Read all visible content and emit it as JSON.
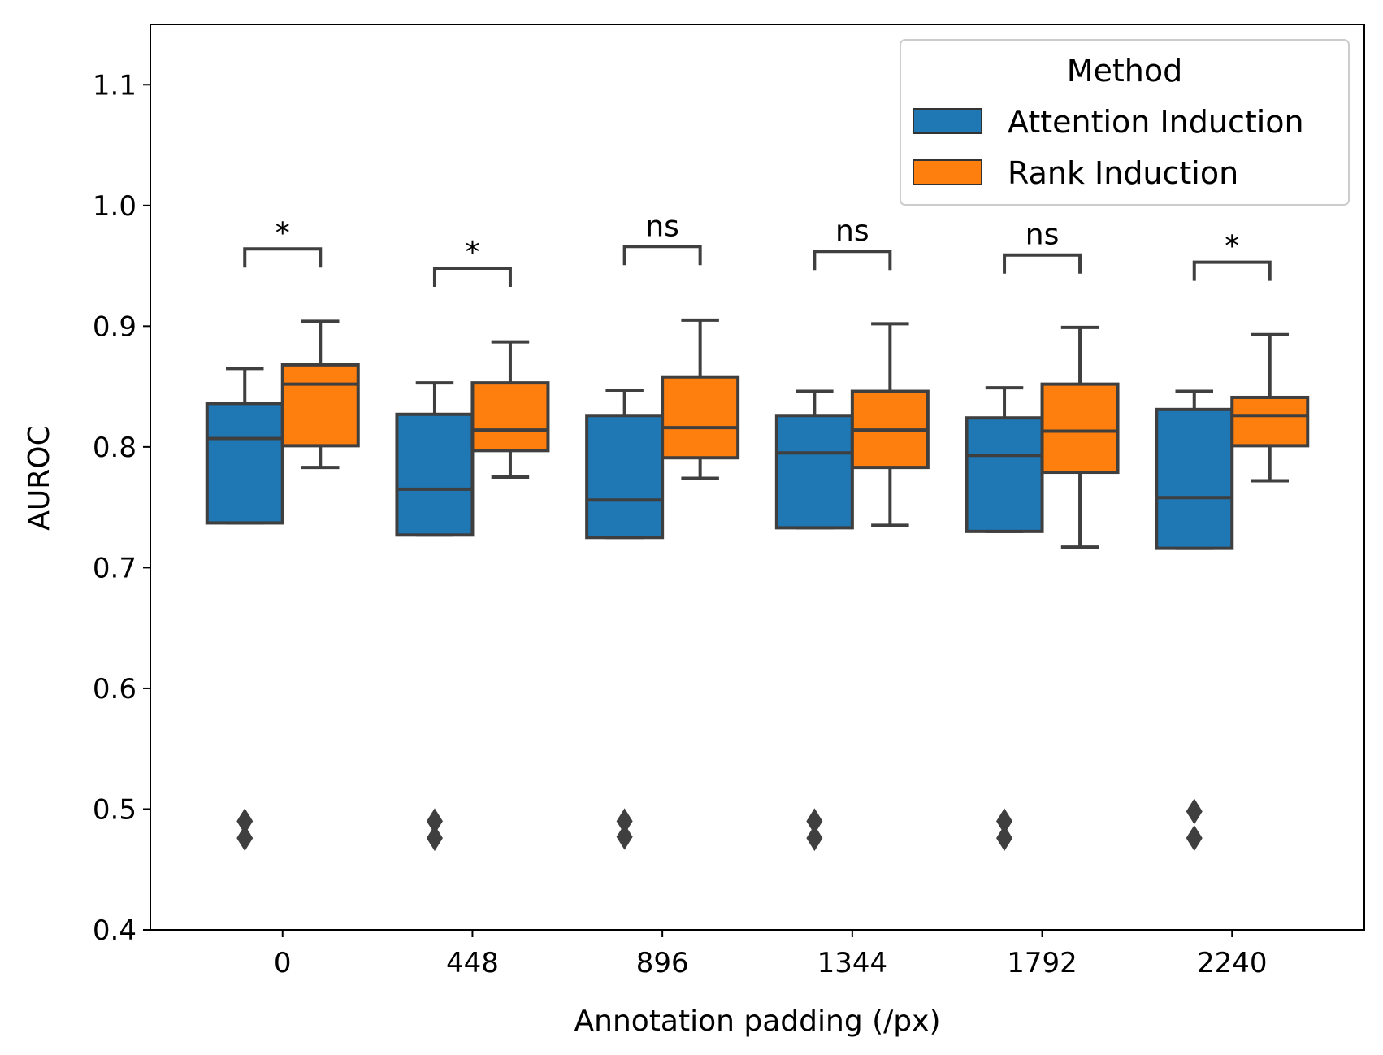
{
  "chart_data": {
    "type": "box",
    "xlabel": "Annotation padding (/px)",
    "ylabel": "AUROC",
    "ylim": [
      0.4,
      1.15
    ],
    "yticks": [
      "0.4",
      "0.5",
      "0.6",
      "0.7",
      "0.8",
      "0.9",
      "1.0",
      "1.1"
    ],
    "categories": [
      "0",
      "448",
      "896",
      "1344",
      "1792",
      "2240"
    ],
    "legend": {
      "title": "Method",
      "placement": "top-right"
    },
    "series": [
      {
        "name": "Attention Induction",
        "color": "#1f77b4",
        "boxes": [
          {
            "whisker_low": 0.737,
            "q1": 0.737,
            "median": 0.807,
            "q3": 0.836,
            "whisker_high": 0.865,
            "outliers": [
              0.49,
              0.476
            ]
          },
          {
            "whisker_low": 0.727,
            "q1": 0.727,
            "median": 0.765,
            "q3": 0.827,
            "whisker_high": 0.853,
            "outliers": [
              0.49,
              0.476
            ]
          },
          {
            "whisker_low": 0.725,
            "q1": 0.725,
            "median": 0.756,
            "q3": 0.826,
            "whisker_high": 0.847,
            "outliers": [
              0.49,
              0.477
            ]
          },
          {
            "whisker_low": 0.733,
            "q1": 0.733,
            "median": 0.795,
            "q3": 0.826,
            "whisker_high": 0.846,
            "outliers": [
              0.49,
              0.476
            ]
          },
          {
            "whisker_low": 0.73,
            "q1": 0.73,
            "median": 0.793,
            "q3": 0.824,
            "whisker_high": 0.849,
            "outliers": [
              0.49,
              0.476
            ]
          },
          {
            "whisker_low": 0.716,
            "q1": 0.716,
            "median": 0.758,
            "q3": 0.831,
            "whisker_high": 0.846,
            "outliers": [
              0.498,
              0.476
            ]
          }
        ]
      },
      {
        "name": "Rank Induction",
        "color": "#ff7f0e",
        "boxes": [
          {
            "whisker_low": 0.783,
            "q1": 0.801,
            "median": 0.852,
            "q3": 0.868,
            "whisker_high": 0.904,
            "outliers": []
          },
          {
            "whisker_low": 0.775,
            "q1": 0.797,
            "median": 0.814,
            "q3": 0.853,
            "whisker_high": 0.887,
            "outliers": []
          },
          {
            "whisker_low": 0.774,
            "q1": 0.791,
            "median": 0.816,
            "q3": 0.858,
            "whisker_high": 0.905,
            "outliers": []
          },
          {
            "whisker_low": 0.735,
            "q1": 0.783,
            "median": 0.814,
            "q3": 0.846,
            "whisker_high": 0.902,
            "outliers": []
          },
          {
            "whisker_low": 0.717,
            "q1": 0.779,
            "median": 0.813,
            "q3": 0.852,
            "whisker_high": 0.899,
            "outliers": []
          },
          {
            "whisker_low": 0.772,
            "q1": 0.801,
            "median": 0.826,
            "q3": 0.841,
            "whisker_high": 0.893,
            "outliers": []
          }
        ]
      }
    ],
    "significance": [
      {
        "label": "*",
        "bracket_y": 0.964
      },
      {
        "label": "*",
        "bracket_y": 0.948
      },
      {
        "label": "ns",
        "bracket_y": 0.966
      },
      {
        "label": "ns",
        "bracket_y": 0.962
      },
      {
        "label": "ns",
        "bracket_y": 0.959
      },
      {
        "label": "*",
        "bracket_y": 0.953
      }
    ]
  }
}
